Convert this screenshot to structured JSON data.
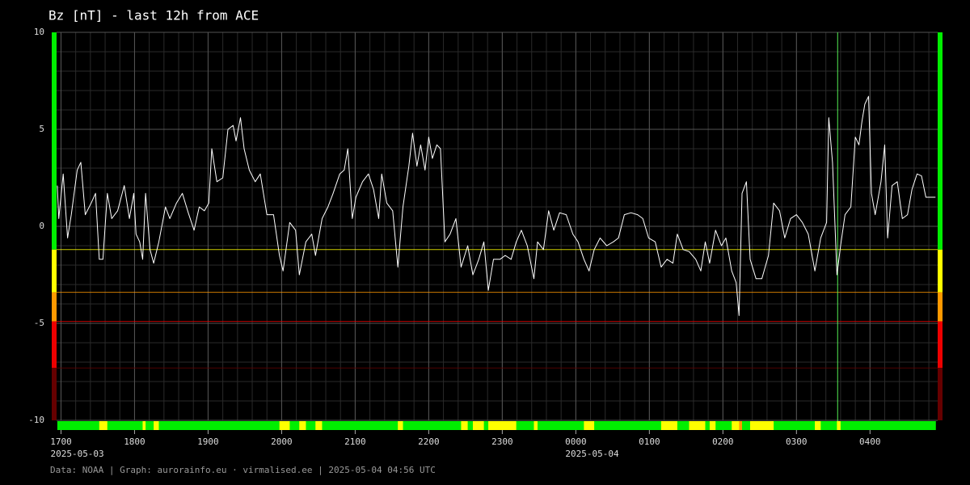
{
  "chart_data": {
    "type": "line",
    "title": "Bz [nT] - last 12h from ACE",
    "footer": "Data: NOAA | Graph: aurorainfo.eu · virmalised.ee | 2025-05-04 04:56 UTC",
    "xlim": [
      16.94,
      28.92
    ],
    "xticks": [
      {
        "value": 17,
        "label": "1700"
      },
      {
        "value": 18,
        "label": "1800"
      },
      {
        "value": 19,
        "label": "1900"
      },
      {
        "value": 20,
        "label": "2000"
      },
      {
        "value": 21,
        "label": "2100"
      },
      {
        "value": 22,
        "label": "2200"
      },
      {
        "value": 23,
        "label": "2300"
      },
      {
        "value": 24,
        "label": "0000"
      },
      {
        "value": 25,
        "label": "0100"
      },
      {
        "value": 26,
        "label": "0200"
      },
      {
        "value": 27,
        "label": "0300"
      },
      {
        "value": 28,
        "label": "0400"
      }
    ],
    "date_labels": [
      {
        "x": 17,
        "label": "2025-05-03"
      },
      {
        "x": 24,
        "label": "2025-05-04"
      }
    ],
    "ylim": [
      -10,
      10
    ],
    "yticks": [
      10,
      5,
      0,
      -5,
      -10
    ],
    "grid": true,
    "minor_grid": {
      "x_step": 0.2,
      "y_step": 1
    },
    "thresholds": [
      -1.2,
      -3.4,
      -4.9,
      -7.3
    ],
    "zone_colors": [
      "#00ee00",
      "#ffff00",
      "#ff9900",
      "#ee0000",
      "#660000"
    ],
    "marker": {
      "x": 27.56,
      "color": "#55ee55"
    },
    "series": [
      {
        "name": "Bz",
        "color": "#ffffff",
        "x": [
          16.95,
          16.97,
          17.03,
          17.09,
          17.14,
          17.22,
          17.27,
          17.33,
          17.41,
          17.47,
          17.52,
          17.57,
          17.63,
          17.69,
          17.77,
          17.86,
          17.93,
          17.99,
          18.02,
          18.07,
          18.11,
          18.15,
          18.21,
          18.26,
          18.33,
          18.42,
          18.48,
          18.57,
          18.65,
          18.73,
          18.81,
          18.88,
          18.95,
          19.01,
          19.05,
          19.12,
          19.2,
          19.27,
          19.34,
          19.38,
          19.44,
          19.49,
          19.56,
          19.64,
          19.71,
          19.8,
          19.89,
          19.97,
          20.02,
          20.11,
          20.19,
          20.24,
          20.33,
          20.41,
          20.46,
          20.55,
          20.63,
          20.7,
          20.79,
          20.85,
          20.9,
          20.96,
          21.01,
          21.1,
          21.18,
          21.25,
          21.32,
          21.36,
          21.43,
          21.51,
          21.58,
          21.65,
          21.73,
          21.78,
          21.84,
          21.89,
          21.95,
          22.0,
          22.05,
          22.11,
          22.16,
          22.22,
          22.29,
          22.37,
          22.44,
          22.53,
          22.6,
          22.68,
          22.75,
          22.81,
          22.88,
          22.97,
          23.04,
          23.12,
          23.19,
          23.26,
          23.34,
          23.43,
          23.48,
          23.56,
          23.63,
          23.7,
          23.78,
          23.87,
          23.96,
          24.03,
          24.11,
          24.18,
          24.25,
          24.33,
          24.42,
          24.51,
          24.58,
          24.66,
          24.75,
          24.84,
          24.91,
          24.99,
          25.08,
          25.16,
          25.24,
          25.32,
          25.38,
          25.46,
          25.54,
          25.63,
          25.7,
          25.76,
          25.82,
          25.9,
          25.98,
          26.04,
          26.12,
          26.18,
          26.22,
          26.26,
          26.32,
          26.37,
          26.45,
          26.53,
          26.62,
          26.69,
          26.77,
          26.84,
          26.92,
          27.0,
          27.08,
          27.16,
          27.25,
          27.33,
          27.41,
          27.44,
          27.49,
          27.55,
          27.6,
          27.66,
          27.74,
          27.8,
          27.85,
          27.89,
          27.93,
          27.98,
          28.02,
          28.07,
          28.15,
          28.2,
          28.24,
          28.3,
          28.37,
          28.44,
          28.51,
          28.57,
          28.64,
          28.7,
          28.76,
          28.89
        ],
        "values": [
          2.1,
          0.4,
          2.7,
          -0.6,
          0.6,
          2.9,
          3.3,
          0.6,
          1.2,
          1.7,
          -1.7,
          -1.7,
          1.7,
          0.4,
          0.8,
          2.1,
          0.4,
          1.7,
          -0.4,
          -0.8,
          -1.7,
          1.7,
          -1.2,
          -1.9,
          -0.8,
          1.0,
          0.4,
          1.2,
          1.7,
          0.7,
          -0.2,
          1.0,
          0.8,
          1.2,
          4.0,
          2.3,
          2.5,
          5.0,
          5.2,
          4.4,
          5.6,
          4.0,
          2.9,
          2.3,
          2.7,
          0.6,
          0.6,
          -1.5,
          -2.3,
          0.2,
          -0.2,
          -2.5,
          -0.8,
          -0.4,
          -1.5,
          0.4,
          1.0,
          1.7,
          2.7,
          2.9,
          4.0,
          0.4,
          1.5,
          2.3,
          2.7,
          1.9,
          0.4,
          2.7,
          1.2,
          0.8,
          -2.1,
          1.0,
          3.1,
          4.8,
          3.1,
          4.2,
          2.9,
          4.6,
          3.5,
          4.2,
          4.0,
          -0.8,
          -0.4,
          0.4,
          -2.1,
          -1.0,
          -2.5,
          -1.7,
          -0.8,
          -3.3,
          -1.7,
          -1.7,
          -1.5,
          -1.7,
          -0.8,
          -0.2,
          -1.0,
          -2.7,
          -0.8,
          -1.2,
          0.8,
          -0.2,
          0.7,
          0.6,
          -0.4,
          -0.8,
          -1.7,
          -2.3,
          -1.2,
          -0.6,
          -1.0,
          -0.8,
          -0.6,
          0.6,
          0.7,
          0.6,
          0.4,
          -0.6,
          -0.8,
          -2.1,
          -1.7,
          -1.9,
          -0.4,
          -1.2,
          -1.3,
          -1.7,
          -2.3,
          -0.8,
          -1.9,
          -0.2,
          -1.0,
          -0.6,
          -2.3,
          -2.9,
          -4.6,
          1.7,
          2.3,
          -1.7,
          -2.7,
          -2.7,
          -1.5,
          1.2,
          0.8,
          -0.6,
          0.4,
          0.6,
          0.2,
          -0.4,
          -2.3,
          -0.6,
          0.2,
          5.6,
          3.3,
          -2.5,
          -1.0,
          0.6,
          1.0,
          4.6,
          4.2,
          5.4,
          6.3,
          6.7,
          1.7,
          0.6,
          2.3,
          4.2,
          -0.6,
          2.1,
          2.3,
          0.4,
          0.6,
          1.9,
          2.7,
          2.6,
          1.5,
          1.5
        ]
      }
    ]
  }
}
